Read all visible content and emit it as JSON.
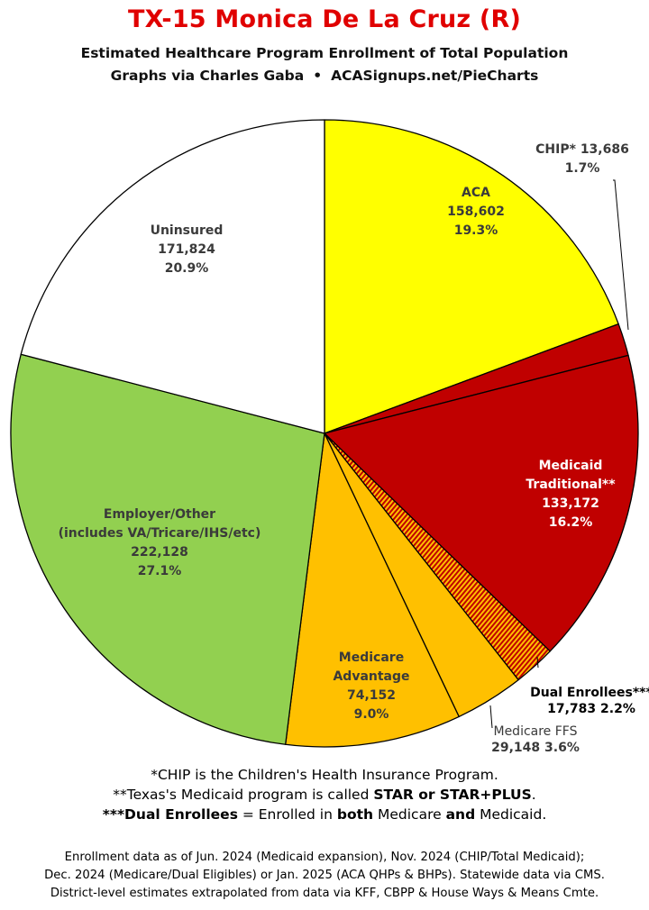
{
  "title": "TX-15 Monica De La Cruz (R)",
  "subtitle": "Estimated Healthcare Program Enrollment of Total Population",
  "credit_left": "Graphs via Charles Gaba",
  "credit_sep": "•",
  "credit_right": "ACASignups.net/PieCharts",
  "notes": {
    "line1": "*CHIP is the Children's Health Insurance Program.",
    "line2_prefix": "**Texas's Medicaid program is called ",
    "line2_bold": "STAR or STAR+PLUS",
    "line2_suffix": ".",
    "line3_bold1": "***Dual Enrollees",
    "line3_mid1": " = Enrolled in ",
    "line3_bold2": "both",
    "line3_mid2": " Medicare ",
    "line3_bold3": "and",
    "line3_suffix": " Medicaid."
  },
  "source": {
    "line1": "Enrollment data as of Jun. 2024 (Medicaid expansion), Nov. 2024 (CHIP/Total Medicaid);",
    "line2": "Dec. 2024 (Medicare/Dual Eligibles) or Jan. 2025 (ACA QHPs & BHPs). Statewide data via CMS.",
    "line3": "District-level estimates extrapolated from data via KFF, CBPP & House Ways & Means Cmte."
  },
  "chart_data": {
    "type": "pie",
    "title": "TX-15 Monica De La Cruz (R)",
    "slices": [
      {
        "name": "ACA",
        "value": 158602,
        "value_label": "158,602",
        "percent_label": "19.3%",
        "color": "#ffff00",
        "pattern": false,
        "label_lines": [
          "ACA",
          "158,602",
          "19.3%"
        ],
        "label_color": "#3a3a3a"
      },
      {
        "name": "CHIP*",
        "value": 13686,
        "value_label": "13,686",
        "percent_label": "1.7%",
        "color": "#c00000",
        "pattern": false,
        "label_lines": [
          "CHIP* 13,686",
          "1.7%"
        ],
        "label_color": "#3a3a3a"
      },
      {
        "name": "Medicaid Traditional**",
        "value": 133172,
        "value_label": "133,172",
        "percent_label": "16.2%",
        "color": "#c00000",
        "pattern": false,
        "label_lines": [
          "Medicaid",
          "Traditional**",
          "133,172",
          "16.2%"
        ],
        "label_color": "#ffffff"
      },
      {
        "name": "Dual Enrollees***",
        "value": 17783,
        "value_label": "17,783",
        "percent_label": "2.2%",
        "color": "#c00000",
        "pattern": true,
        "pattern_color": "#ffc000",
        "label_lines": [
          "Dual Enrollees***",
          "17,783 2.2%"
        ],
        "label_color": "#000000"
      },
      {
        "name": "Medicare FFS",
        "value": 29148,
        "value_label": "29,148",
        "percent_label": "3.6%",
        "color": "#ffc000",
        "pattern": false,
        "label_lines": [
          "Medicare FFS",
          "29,148 3.6%"
        ],
        "label_color": "#3a3a3a"
      },
      {
        "name": "Medicare Advantage",
        "value": 74152,
        "value_label": "74,152",
        "percent_label": "9.0%",
        "color": "#ffc000",
        "pattern": false,
        "label_lines": [
          "Medicare",
          "Advantage",
          "74,152",
          "9.0%"
        ],
        "label_color": "#3a3a3a"
      },
      {
        "name": "Employer/Other (includes VA/Tricare/IHS/etc)",
        "value": 222128,
        "value_label": "222,128",
        "percent_label": "27.1%",
        "color": "#92d050",
        "pattern": false,
        "label_lines": [
          "Employer/Other",
          "(includes VA/Tricare/IHS/etc)",
          "222,128",
          "27.1%"
        ],
        "label_color": "#3a3a3a"
      },
      {
        "name": "Uninsured",
        "value": 171824,
        "value_label": "171,824",
        "percent_label": "20.9%",
        "color": "#ffffff",
        "pattern": false,
        "label_lines": [
          "Uninsured",
          "171,824",
          "20.9%"
        ],
        "label_color": "#3a3a3a"
      }
    ],
    "start": "12 o'clock",
    "direction": "clockwise"
  }
}
